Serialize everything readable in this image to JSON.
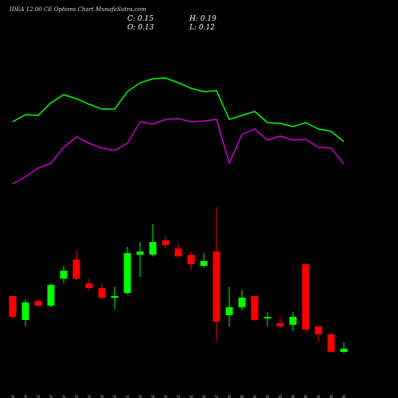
{
  "chart_data": {
    "type": "candlestick",
    "title": "IDEA 12.00  CE Options  Chart MunafaSutra.com",
    "header": {
      "close": "C: 0.15",
      "high": "H: 0.19",
      "open": "O: 0.13",
      "low": "L: 0.12"
    },
    "categories": [
      "08 Dec",
      "09 Dec",
      "10 Dec",
      "11 Dec",
      "12 Dec",
      "15 Dec",
      "16 Dec",
      "17 Dec",
      "18 Dec",
      "19 Dec",
      "22 Dec",
      "23 Dec",
      "24 Dec",
      "26 Dec",
      "29 Dec",
      "30 Dec",
      "31 Dec",
      "01 Jan",
      "02 Jan",
      "05 Jan",
      "06 Jan",
      "07 Jan",
      "08 Jan",
      "09 Jan",
      "12 Jan",
      "13 Jan",
      "14 Jan"
    ],
    "open": [
      0.48,
      0.33,
      0.45,
      0.42,
      0.59,
      0.71,
      0.56,
      0.53,
      0.47,
      0.5,
      0.74,
      0.74,
      0.83,
      0.78,
      0.74,
      0.67,
      0.76,
      0.36,
      0.41,
      0.48,
      0.34,
      0.31,
      0.3,
      0.68,
      0.29,
      0.24,
      0.13
    ],
    "high": [
      0.48,
      0.46,
      0.46,
      0.56,
      0.67,
      0.77,
      0.59,
      0.56,
      0.54,
      0.79,
      0.82,
      0.93,
      0.86,
      0.81,
      0.76,
      0.75,
      1.04,
      0.54,
      0.52,
      0.48,
      0.38,
      0.35,
      0.38,
      0.68,
      0.29,
      0.24,
      0.19
    ],
    "low": [
      0.34,
      0.29,
      0.41,
      0.41,
      0.56,
      0.58,
      0.51,
      0.46,
      0.4,
      0.49,
      0.6,
      0.73,
      0.78,
      0.72,
      0.64,
      0.66,
      0.2,
      0.29,
      0.39,
      0.32,
      0.29,
      0.28,
      0.26,
      0.25,
      0.19,
      0.13,
      0.12
    ],
    "close": [
      0.35,
      0.44,
      0.42,
      0.55,
      0.64,
      0.59,
      0.53,
      0.47,
      0.48,
      0.75,
      0.76,
      0.82,
      0.8,
      0.73,
      0.68,
      0.7,
      0.32,
      0.41,
      0.47,
      0.33,
      0.35,
      0.29,
      0.35,
      0.27,
      0.24,
      0.13,
      0.15
    ],
    "up_color": "#00ff00",
    "down_color": "#ff0000",
    "ylim": [
      0.04,
      1.09
    ],
    "lines_ylim": [
      0,
      200
    ],
    "lines": [
      {
        "color": "#00ff00",
        "values": [
          107,
          116,
          115,
          131,
          141,
          136,
          129,
          123,
          123,
          145,
          156,
          161,
          162,
          156,
          149,
          145,
          146,
          110,
          115,
          120,
          106,
          105,
          101,
          106,
          98,
          95,
          82
        ]
      },
      {
        "color": "#cc00cc",
        "values": [
          29,
          38,
          49,
          55,
          75,
          88,
          80,
          74,
          71,
          80,
          107,
          104,
          110,
          111,
          107,
          108,
          110,
          55,
          91,
          98,
          84,
          89,
          84,
          85,
          75,
          74,
          54
        ]
      }
    ]
  }
}
